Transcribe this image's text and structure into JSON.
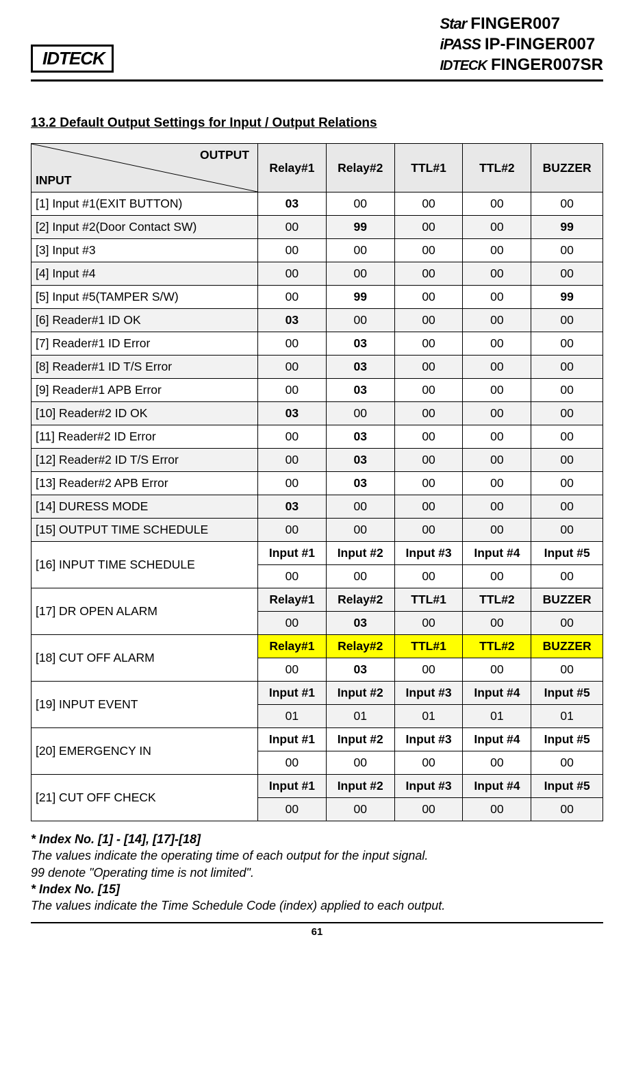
{
  "header": {
    "logo_text": "IDTECK",
    "products": [
      {
        "brand": "Star",
        "model": "FINGER007"
      },
      {
        "brand": "iPASS",
        "model": "IP-FINGER007"
      },
      {
        "brand": "IDTECK",
        "model": "FINGER007SR"
      }
    ]
  },
  "section_title": "13.2 Default Output Settings for Input / Output Relations",
  "table": {
    "corner": {
      "out": "OUTPUT",
      "in": "INPUT"
    },
    "columns": [
      "Relay#1",
      "Relay#2",
      "TTL#1",
      "TTL#2",
      "BUZZER"
    ],
    "input_cols": [
      "Input #1",
      "Input #2",
      "Input #3",
      "Input #4",
      "Input #5"
    ],
    "rows_simple": [
      {
        "label": "[1] Input #1(EXIT BUTTON)",
        "vals": [
          "03",
          "00",
          "00",
          "00",
          "00"
        ],
        "bold": [
          0
        ],
        "gray": false
      },
      {
        "label": "[2] Input #2(Door Contact SW)",
        "vals": [
          "00",
          "99",
          "00",
          "00",
          "99"
        ],
        "bold": [
          1,
          4
        ],
        "gray": true
      },
      {
        "label": "[3] Input #3",
        "vals": [
          "00",
          "00",
          "00",
          "00",
          "00"
        ],
        "bold": [],
        "gray": false
      },
      {
        "label": "[4] Input #4",
        "vals": [
          "00",
          "00",
          "00",
          "00",
          "00"
        ],
        "bold": [],
        "gray": true
      },
      {
        "label": "[5] Input #5(TAMPER S/W)",
        "vals": [
          "00",
          "99",
          "00",
          "00",
          "99"
        ],
        "bold": [
          1,
          4
        ],
        "gray": false
      },
      {
        "label": "[6] Reader#1 ID OK",
        "vals": [
          "03",
          "00",
          "00",
          "00",
          "00"
        ],
        "bold": [
          0
        ],
        "gray": true
      },
      {
        "label": "[7] Reader#1 ID Error",
        "vals": [
          "00",
          "03",
          "00",
          "00",
          "00"
        ],
        "bold": [
          1
        ],
        "gray": false
      },
      {
        "label": "[8] Reader#1 ID T/S Error",
        "vals": [
          "00",
          "03",
          "00",
          "00",
          "00"
        ],
        "bold": [
          1
        ],
        "gray": true
      },
      {
        "label": "[9] Reader#1 APB Error",
        "vals": [
          "00",
          "03",
          "00",
          "00",
          "00"
        ],
        "bold": [
          1
        ],
        "gray": false
      },
      {
        "label": "[10] Reader#2 ID OK",
        "vals": [
          "03",
          "00",
          "00",
          "00",
          "00"
        ],
        "bold": [
          0
        ],
        "gray": true
      },
      {
        "label": "[11] Reader#2 ID Error",
        "vals": [
          "00",
          "03",
          "00",
          "00",
          "00"
        ],
        "bold": [
          1
        ],
        "gray": false
      },
      {
        "label": "[12] Reader#2 ID T/S Error",
        "vals": [
          "00",
          "03",
          "00",
          "00",
          "00"
        ],
        "bold": [
          1
        ],
        "gray": true
      },
      {
        "label": "[13] Reader#2 APB Error",
        "vals": [
          "00",
          "03",
          "00",
          "00",
          "00"
        ],
        "bold": [
          1
        ],
        "gray": false
      },
      {
        "label": "[14] DURESS MODE",
        "vals": [
          "03",
          "00",
          "00",
          "00",
          "00"
        ],
        "bold": [
          0
        ],
        "gray": true
      },
      {
        "label": "[15] OUTPUT TIME SCHEDULE",
        "vals": [
          "00",
          "00",
          "00",
          "00",
          "00"
        ],
        "bold": [],
        "gray": true,
        "all_gray": true
      }
    ],
    "rows_double": [
      {
        "label": "[16] INPUT TIME SCHEDULE",
        "hdr_type": "input",
        "hdr_gray": false,
        "hdr_hl": false,
        "val_gray": false,
        "vals": [
          "00",
          "00",
          "00",
          "00",
          "00"
        ],
        "bold": []
      },
      {
        "label": "[17] DR OPEN ALARM",
        "hdr_type": "output",
        "hdr_gray": true,
        "hdr_hl": false,
        "val_gray": true,
        "vals": [
          "00",
          "03",
          "00",
          "00",
          "00"
        ],
        "bold": [
          1
        ]
      },
      {
        "label": "[18] CUT OFF ALARM",
        "hdr_type": "output",
        "hdr_gray": false,
        "hdr_hl": true,
        "val_gray": false,
        "vals": [
          "00",
          "03",
          "00",
          "00",
          "00"
        ],
        "bold": [
          1
        ]
      },
      {
        "label": "[19] INPUT EVENT",
        "hdr_type": "input",
        "hdr_gray": true,
        "hdr_hl": false,
        "val_gray": true,
        "vals": [
          "01",
          "01",
          "01",
          "01",
          "01"
        ],
        "bold": []
      },
      {
        "label": "[20] EMERGENCY IN",
        "hdr_type": "input",
        "hdr_gray": false,
        "hdr_hl": false,
        "val_gray": false,
        "vals": [
          "00",
          "00",
          "00",
          "00",
          "00"
        ],
        "bold": []
      },
      {
        "label": "[21] CUT OFF CHECK",
        "hdr_type": "input",
        "hdr_gray": true,
        "hdr_hl": false,
        "val_gray": true,
        "vals": [
          "00",
          "00",
          "00",
          "00",
          "00"
        ],
        "bold": []
      }
    ]
  },
  "footnotes": {
    "l1": "* Index No. [1] - [14], [17]-[18]",
    "l2": "The values indicate the operating time of each output for the input signal.",
    "l3": "99 denote \"Operating time is not limited\".",
    "l4": "* Index No. [15]",
    "l5": "The values indicate the Time Schedule Code (index) applied to each output."
  },
  "page_number": "61"
}
